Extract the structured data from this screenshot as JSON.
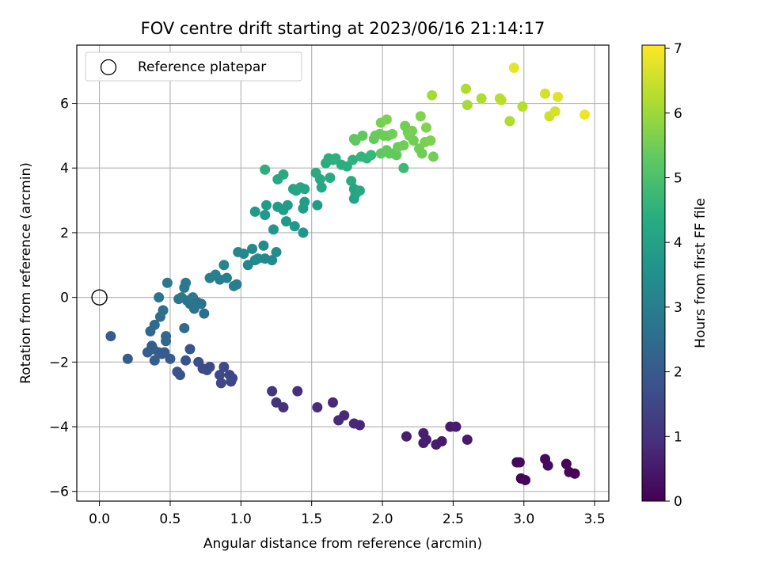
{
  "chart_data": {
    "type": "scatter",
    "title": "FOV centre drift starting at 2023/06/16 21:14:17",
    "xlabel": "Angular distance from reference (arcmin)",
    "ylabel": "Rotation from reference (arcmin)",
    "xlim": [
      -0.16,
      3.6
    ],
    "ylim": [
      -6.3,
      7.8
    ],
    "xticks": [
      0.0,
      0.5,
      1.0,
      1.5,
      2.0,
      2.5,
      3.0,
      3.5
    ],
    "xtick_labels": [
      "0.0",
      "0.5",
      "1.0",
      "1.5",
      "2.0",
      "2.5",
      "3.0",
      "3.5"
    ],
    "yticks": [
      -6,
      -4,
      -2,
      0,
      2,
      4,
      6
    ],
    "ytick_labels": [
      "−6",
      "−4",
      "−2",
      "0",
      "2",
      "4",
      "6"
    ],
    "grid": true,
    "legend": {
      "placement": "top-left",
      "entries": [
        "Reference platepar"
      ]
    },
    "reference_point": {
      "label": "Reference platepar",
      "x": 0.0,
      "y": 0.0,
      "marker": "open-circle"
    },
    "colorbar": {
      "label": "Hours from first FF file",
      "range": [
        0,
        7.05
      ],
      "ticks": [
        0,
        1,
        2,
        3,
        4,
        5,
        6,
        7
      ],
      "tick_labels": [
        "0",
        "1",
        "2",
        "3",
        "4",
        "5",
        "6",
        "7"
      ],
      "colormap": "viridis"
    },
    "points": [
      [
        2.95,
        -5.1,
        0.1
      ],
      [
        2.97,
        -5.1,
        0.15
      ],
      [
        2.98,
        -5.6,
        0.05
      ],
      [
        3.01,
        -5.65,
        0.1
      ],
      [
        3.15,
        -5.0,
        0.2
      ],
      [
        3.17,
        -5.2,
        0.2
      ],
      [
        3.3,
        -5.15,
        0.1
      ],
      [
        3.32,
        -5.4,
        0.15
      ],
      [
        3.36,
        -5.45,
        0.05
      ],
      [
        2.17,
        -4.3,
        0.6
      ],
      [
        2.29,
        -4.2,
        0.6
      ],
      [
        2.29,
        -4.5,
        0.55
      ],
      [
        2.31,
        -4.4,
        0.6
      ],
      [
        2.38,
        -4.55,
        0.55
      ],
      [
        2.42,
        -4.45,
        0.5
      ],
      [
        2.48,
        -4.0,
        0.5
      ],
      [
        2.52,
        -4.0,
        0.55
      ],
      [
        2.6,
        -4.4,
        0.5
      ],
      [
        1.4,
        -2.9,
        0.95
      ],
      [
        1.54,
        -3.4,
        0.9
      ],
      [
        1.65,
        -3.25,
        0.85
      ],
      [
        1.69,
        -3.8,
        0.85
      ],
      [
        1.73,
        -3.65,
        0.8
      ],
      [
        1.8,
        -3.9,
        0.8
      ],
      [
        1.84,
        -3.95,
        0.75
      ],
      [
        1.22,
        -2.9,
        1.1
      ],
      [
        1.25,
        -3.25,
        1.05
      ],
      [
        1.3,
        -3.4,
        1.0
      ],
      [
        0.85,
        -2.4,
        1.55
      ],
      [
        0.86,
        -2.65,
        1.5
      ],
      [
        0.88,
        -2.15,
        1.55
      ],
      [
        0.92,
        -2.4,
        1.5
      ],
      [
        0.93,
        -2.6,
        1.45
      ],
      [
        0.94,
        -2.5,
        1.5
      ],
      [
        0.7,
        -2.0,
        1.7
      ],
      [
        0.73,
        -2.2,
        1.65
      ],
      [
        0.76,
        -2.25,
        1.65
      ],
      [
        0.78,
        -2.15,
        1.6
      ],
      [
        0.55,
        -2.3,
        1.8
      ],
      [
        0.57,
        -2.4,
        1.8
      ],
      [
        0.61,
        -1.95,
        1.8
      ],
      [
        0.64,
        -1.6,
        1.85
      ],
      [
        0.08,
        -1.2,
        2.0
      ],
      [
        0.2,
        -1.9,
        2.0
      ],
      [
        0.34,
        -1.7,
        2.05
      ],
      [
        0.37,
        -1.5,
        2.05
      ],
      [
        0.38,
        -1.6,
        2.1
      ],
      [
        0.39,
        -1.95,
        2.05
      ],
      [
        0.42,
        -1.7,
        2.1
      ],
      [
        0.44,
        -1.75,
        2.1
      ],
      [
        0.46,
        -1.7,
        2.0
      ],
      [
        0.5,
        -1.9,
        2.0
      ],
      [
        0.36,
        -1.05,
        2.35
      ],
      [
        0.39,
        -0.85,
        2.4
      ],
      [
        0.43,
        -0.6,
        2.5
      ],
      [
        0.45,
        -0.4,
        2.55
      ],
      [
        0.47,
        -1.2,
        2.35
      ],
      [
        0.47,
        -1.35,
        2.3
      ],
      [
        0.42,
        0.0,
        2.7
      ],
      [
        0.48,
        0.45,
        2.8
      ],
      [
        0.56,
        -0.05,
        2.8
      ],
      [
        0.58,
        0.0,
        2.8
      ],
      [
        0.6,
        0.3,
        2.85
      ],
      [
        0.61,
        0.45,
        2.85
      ],
      [
        0.6,
        -0.95,
        2.45
      ],
      [
        0.62,
        -0.1,
        2.75
      ],
      [
        0.64,
        -0.2,
        2.7
      ],
      [
        0.66,
        0.0,
        2.8
      ],
      [
        0.67,
        -0.35,
        2.65
      ],
      [
        0.69,
        -0.15,
        2.7
      ],
      [
        0.72,
        -0.2,
        2.7
      ],
      [
        0.74,
        -0.5,
        2.6
      ],
      [
        0.78,
        0.6,
        3.0
      ],
      [
        0.82,
        0.7,
        3.1
      ],
      [
        0.85,
        0.55,
        3.05
      ],
      [
        0.88,
        1.0,
        3.2
      ],
      [
        0.9,
        0.6,
        3.05
      ],
      [
        0.95,
        0.35,
        3.0
      ],
      [
        0.97,
        0.4,
        3.0
      ],
      [
        0.98,
        1.4,
        3.25
      ],
      [
        1.02,
        1.35,
        3.3
      ],
      [
        1.05,
        1.0,
        3.2
      ],
      [
        1.08,
        1.5,
        3.3
      ],
      [
        1.1,
        1.15,
        3.3
      ],
      [
        1.12,
        1.2,
        3.35
      ],
      [
        1.16,
        1.6,
        3.35
      ],
      [
        1.17,
        1.2,
        3.3
      ],
      [
        1.22,
        1.15,
        3.35
      ],
      [
        1.25,
        1.4,
        3.4
      ],
      [
        1.1,
        2.65,
        3.8
      ],
      [
        1.17,
        2.55,
        3.8
      ],
      [
        1.18,
        2.85,
        3.85
      ],
      [
        1.23,
        2.1,
        3.7
      ],
      [
        1.26,
        2.8,
        3.85
      ],
      [
        1.3,
        2.7,
        3.85
      ],
      [
        1.32,
        2.35,
        3.75
      ],
      [
        1.33,
        2.85,
        3.9
      ],
      [
        1.38,
        2.2,
        3.75
      ],
      [
        1.44,
        2.0,
        3.7
      ],
      [
        1.44,
        2.75,
        3.9
      ],
      [
        1.45,
        2.95,
        3.95
      ],
      [
        1.54,
        2.85,
        3.9
      ],
      [
        1.17,
        3.95,
        4.4
      ],
      [
        1.26,
        3.65,
        4.2
      ],
      [
        1.3,
        3.8,
        4.25
      ],
      [
        1.37,
        3.35,
        4.1
      ],
      [
        1.39,
        3.3,
        4.1
      ],
      [
        1.42,
        3.4,
        4.2
      ],
      [
        1.45,
        3.35,
        4.15
      ],
      [
        1.53,
        3.85,
        4.3
      ],
      [
        1.56,
        3.65,
        4.25
      ],
      [
        1.57,
        3.4,
        4.2
      ],
      [
        1.6,
        4.15,
        4.35
      ],
      [
        1.62,
        4.3,
        4.4
      ],
      [
        1.63,
        3.7,
        4.3
      ],
      [
        1.65,
        4.25,
        4.4
      ],
      [
        1.67,
        4.3,
        4.45
      ],
      [
        1.71,
        4.1,
        4.4
      ],
      [
        1.75,
        4.05,
        4.4
      ],
      [
        1.78,
        3.6,
        4.3
      ],
      [
        1.79,
        4.25,
        4.5
      ],
      [
        1.8,
        3.05,
        4.1
      ],
      [
        1.81,
        3.2,
        4.15
      ],
      [
        1.8,
        3.35,
        4.15
      ],
      [
        1.84,
        3.3,
        4.2
      ],
      [
        1.85,
        4.35,
        4.6
      ],
      [
        1.89,
        4.3,
        4.6
      ],
      [
        1.92,
        4.4,
        4.7
      ],
      [
        2.15,
        4.0,
        4.8
      ],
      [
        1.8,
        4.9,
        5.3
      ],
      [
        1.81,
        4.85,
        5.3
      ],
      [
        1.86,
        5.0,
        5.3
      ],
      [
        1.94,
        4.9,
        5.35
      ],
      [
        1.95,
        5.0,
        5.4
      ],
      [
        1.98,
        5.05,
        5.4
      ],
      [
        1.99,
        4.45,
        5.3
      ],
      [
        2.01,
        5.0,
        5.45
      ],
      [
        2.03,
        4.55,
        5.35
      ],
      [
        2.04,
        5.0,
        5.45
      ],
      [
        2.05,
        4.45,
        5.3
      ],
      [
        2.07,
        5.05,
        5.5
      ],
      [
        2.08,
        4.45,
        5.35
      ],
      [
        2.1,
        4.4,
        5.35
      ],
      [
        2.11,
        4.65,
        5.45
      ],
      [
        2.15,
        4.7,
        5.5
      ],
      [
        2.16,
        5.3,
        5.55
      ],
      [
        2.18,
        5.1,
        5.55
      ],
      [
        2.19,
        5.0,
        5.6
      ],
      [
        2.21,
        5.15,
        5.6
      ],
      [
        2.22,
        4.85,
        5.55
      ],
      [
        2.26,
        4.6,
        5.55
      ],
      [
        2.27,
        5.6,
        5.7
      ],
      [
        2.28,
        4.45,
        5.5
      ],
      [
        2.3,
        4.8,
        5.6
      ],
      [
        2.31,
        5.25,
        5.7
      ],
      [
        2.34,
        4.85,
        5.65
      ],
      [
        2.36,
        4.35,
        5.55
      ],
      [
        1.99,
        5.4,
        5.6
      ],
      [
        2.03,
        5.5,
        5.65
      ],
      [
        2.35,
        6.25,
        6.1
      ],
      [
        2.59,
        6.45,
        6.2
      ],
      [
        2.6,
        5.95,
        6.1
      ],
      [
        2.7,
        6.15,
        6.2
      ],
      [
        2.83,
        6.15,
        6.3
      ],
      [
        2.84,
        6.1,
        6.3
      ],
      [
        2.9,
        5.45,
        6.2
      ],
      [
        2.93,
        7.1,
        6.8
      ],
      [
        2.99,
        5.9,
        6.3
      ],
      [
        3.15,
        6.3,
        6.6
      ],
      [
        3.18,
        5.6,
        6.5
      ],
      [
        3.22,
        5.75,
        6.6
      ],
      [
        3.24,
        6.2,
        6.7
      ],
      [
        3.43,
        5.65,
        6.9
      ]
    ]
  }
}
